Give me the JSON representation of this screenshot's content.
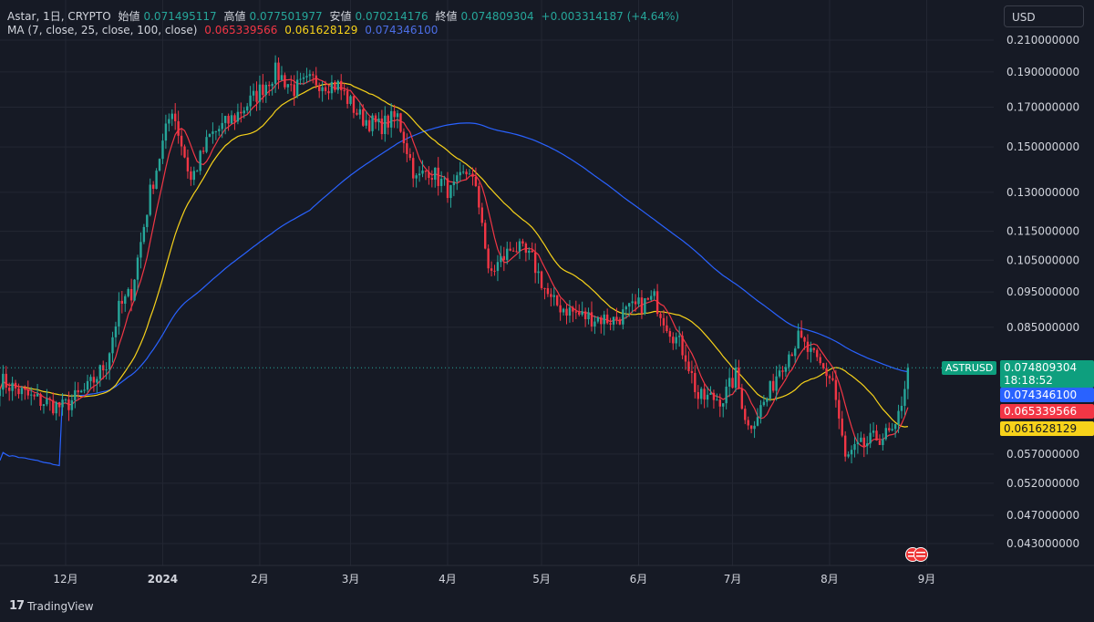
{
  "legend": {
    "symbol": "Astar, 1日, CRYPTO",
    "open_label": "始値",
    "open": "0.071495117",
    "high_label": "高値",
    "high": "0.077501977",
    "low_label": "安値",
    "low": "0.070214176",
    "close_label": "終値",
    "close": "0.074809304",
    "change": "+0.003314187 (+4.64%)",
    "ma_label": "MA (7, close, 25, close, 100, close)",
    "ma7": "0.065339566",
    "ma25": "0.061628129",
    "ma100": "0.074346100"
  },
  "currency": "USD",
  "price_tags": {
    "symbol": "ASTRUSD",
    "price": "0.074809304",
    "countdown": "18:18:52",
    "ma100": "0.074346100",
    "ma7": "0.065339566",
    "ma25": "0.061628129"
  },
  "branding": "TradingView",
  "colors": {
    "up": "#26a69a",
    "down": "#f23645",
    "ma7": "#f23645",
    "ma25": "#f7d21a",
    "ma100": "#2962ff",
    "bg": "#161a25"
  },
  "chart_data": {
    "type": "candlestick",
    "y_scale": "log",
    "y_ticks": [
      "0.210000000",
      "0.190000000",
      "0.170000000",
      "0.150000000",
      "0.130000000",
      "0.115000000",
      "0.105000000",
      "0.095000000",
      "0.085000000",
      "0.057000000",
      "0.052000000",
      "0.047000000",
      "0.043000000"
    ],
    "y_tick_values": [
      0.21,
      0.19,
      0.17,
      0.15,
      0.13,
      0.115,
      0.105,
      0.095,
      0.085,
      0.057,
      0.052,
      0.047,
      0.043
    ],
    "x_ticks": [
      "12月",
      "2024",
      "2月",
      "3月",
      "4月",
      "5月",
      "6月",
      "7月",
      "8月",
      "9月"
    ],
    "x_tick_dates": [
      "2023-12-01",
      "2024-01-01",
      "2024-02-01",
      "2024-03-01",
      "2024-04-01",
      "2024-05-01",
      "2024-06-01",
      "2024-07-01",
      "2024-08-01",
      "2024-09-01"
    ],
    "close_anchors": [
      [
        "2023-11-10",
        0.072
      ],
      [
        "2023-11-20",
        0.068
      ],
      [
        "2023-11-30",
        0.066
      ],
      [
        "2023-12-08",
        0.07
      ],
      [
        "2023-12-14",
        0.076
      ],
      [
        "2023-12-18",
        0.09
      ],
      [
        "2023-12-22",
        0.095
      ],
      [
        "2023-12-28",
        0.13
      ],
      [
        "2024-01-04",
        0.17
      ],
      [
        "2024-01-10",
        0.135
      ],
      [
        "2024-01-16",
        0.155
      ],
      [
        "2024-01-24",
        0.165
      ],
      [
        "2024-01-30",
        0.175
      ],
      [
        "2024-02-06",
        0.19
      ],
      [
        "2024-02-12",
        0.18
      ],
      [
        "2024-02-18",
        0.185
      ],
      [
        "2024-02-26",
        0.182
      ],
      [
        "2024-03-04",
        0.165
      ],
      [
        "2024-03-10",
        0.16
      ],
      [
        "2024-03-16",
        0.165
      ],
      [
        "2024-03-22",
        0.135
      ],
      [
        "2024-03-26",
        0.14
      ],
      [
        "2024-04-02",
        0.13
      ],
      [
        "2024-04-08",
        0.14
      ],
      [
        "2024-04-12",
        0.12
      ],
      [
        "2024-04-14",
        0.1
      ],
      [
        "2024-04-22",
        0.11
      ],
      [
        "2024-04-28",
        0.105
      ],
      [
        "2024-05-04",
        0.092
      ],
      [
        "2024-05-14",
        0.088
      ],
      [
        "2024-05-24",
        0.087
      ],
      [
        "2024-05-30",
        0.09
      ],
      [
        "2024-06-06",
        0.093
      ],
      [
        "2024-06-10",
        0.086
      ],
      [
        "2024-06-16",
        0.078
      ],
      [
        "2024-06-20",
        0.068
      ],
      [
        "2024-06-28",
        0.068
      ],
      [
        "2024-07-02",
        0.073
      ],
      [
        "2024-07-06",
        0.062
      ],
      [
        "2024-07-12",
        0.068
      ],
      [
        "2024-07-16",
        0.075
      ],
      [
        "2024-07-22",
        0.082
      ],
      [
        "2024-07-28",
        0.076
      ],
      [
        "2024-08-02",
        0.072
      ],
      [
        "2024-08-06",
        0.056
      ],
      [
        "2024-08-10",
        0.058
      ],
      [
        "2024-08-16",
        0.06
      ],
      [
        "2024-08-22",
        0.061
      ],
      [
        "2024-08-26",
        0.0748
      ]
    ],
    "ma7_last": 0.065339566,
    "ma25_last": 0.061628129,
    "ma100_last": 0.0743461,
    "last_price": 0.074809304
  }
}
